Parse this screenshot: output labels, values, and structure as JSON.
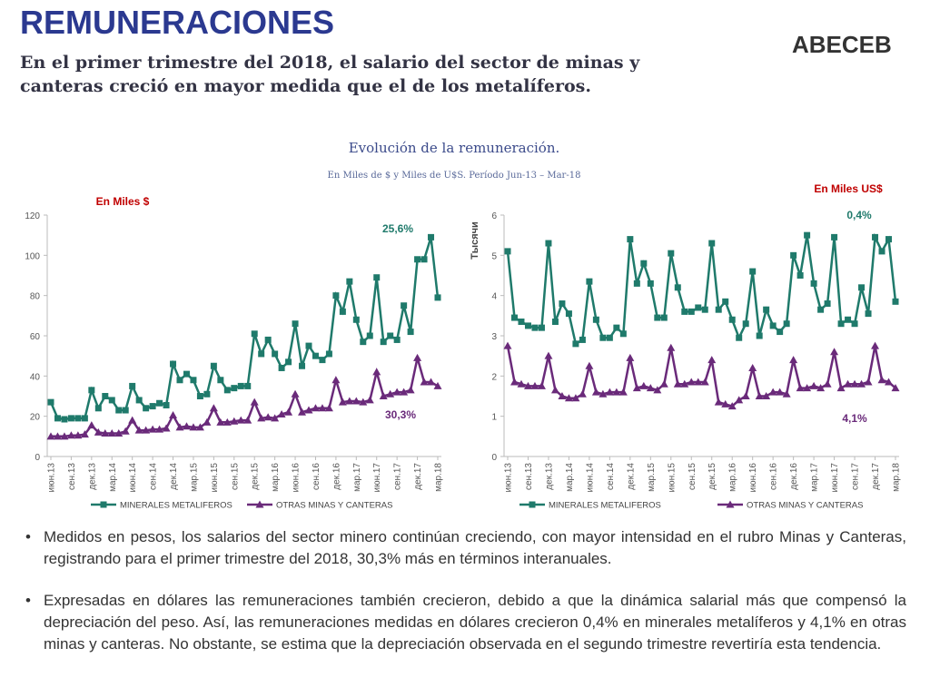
{
  "title": "REMUNERACIONES",
  "subtitle": "En el primer trimestre del 2018, el salario del sector de minas y canteras creció en mayor medida que el de los metalíferos.",
  "logo": "ABECEB",
  "chart_header": {
    "title": "Evolución de la remuneración.",
    "subtitle": "En Miles de $ y Miles de U$S. Período Jun-13 – Mar-18"
  },
  "bullets": [
    "Medidos en pesos, los salarios del sector minero continúan creciendo, con mayor intensidad en el rubro Minas y Canteras, registrando para el primer trimestre del 2018, 30,3%  más en términos interanuales.",
    "Expresadas en dólares las remuneraciones también crecieron, debido a que la dinámica salarial más que compensó la depreciación del peso. Así, las remuneraciones medidas en dólares crecieron 0,4% en minerales metalíferos y 4,1% en otras minas y canteras. No obstante, se estima que la depreciación observada en el segundo trimestre revertiría esta tendencia."
  ],
  "chart_data": [
    {
      "type": "line",
      "annotations": [
        "En Miles  $",
        "25,6%",
        "30,3%"
      ],
      "categories": [
        "июн.13",
        null,
        null,
        "сен.13",
        null,
        null,
        "дек.13",
        null,
        null,
        "мар.14",
        null,
        null,
        "июн.14",
        null,
        null,
        "сен.14",
        null,
        null,
        "дек.14",
        null,
        null,
        "мар.15",
        null,
        null,
        "июн.15",
        null,
        null,
        "сен.15",
        null,
        null,
        "дек.15",
        null,
        null,
        "мар.16",
        null,
        null,
        "июн.16",
        null,
        null,
        "сен.16",
        null,
        null,
        "дек.16",
        null,
        null,
        "мар.17",
        null,
        null,
        "июн.17",
        null,
        null,
        "сен.17",
        null,
        null,
        "дек.17",
        null,
        null,
        "мар.18"
      ],
      "ylim": [
        0,
        120
      ],
      "yticks": [
        0,
        20,
        40,
        60,
        80,
        100,
        120
      ],
      "legend": "bottom",
      "series": [
        {
          "name": "MINERALES METALIFEROS",
          "color": "#1f7a6b",
          "values": [
            27,
            19,
            18.5,
            19,
            19,
            19,
            33,
            24,
            30,
            28,
            23,
            23,
            35,
            28,
            24,
            25,
            26.5,
            25.5,
            46,
            38,
            41,
            38,
            30,
            31,
            45,
            38,
            33,
            34,
            35,
            35,
            61,
            51,
            58,
            51,
            44,
            47,
            66,
            45,
            55,
            50,
            48,
            51,
            80,
            72,
            87,
            68,
            57,
            60,
            89,
            57,
            60,
            58,
            75,
            62,
            98,
            98,
            109,
            79
          ]
        },
        {
          "name": "OTRAS MINAS Y CANTERAS",
          "color": "#6a2a7a",
          "values": [
            10,
            10,
            10,
            10.5,
            10.5,
            11,
            15.5,
            12,
            11.5,
            11.5,
            11.5,
            12.5,
            18,
            13,
            13,
            13.5,
            13.5,
            14,
            20.5,
            14.5,
            15,
            14.5,
            14.5,
            17,
            24,
            17,
            17,
            17.5,
            18,
            18,
            27,
            19,
            19.5,
            19,
            21,
            22,
            31,
            22,
            23,
            24,
            24,
            24,
            38,
            27,
            27.5,
            27.5,
            27,
            28,
            42,
            30,
            31,
            32,
            32,
            33,
            49,
            37,
            37,
            35
          ]
        }
      ]
    },
    {
      "type": "line",
      "y_label": "Тысячи",
      "annotations": [
        "En Miles US$",
        "0,4%",
        "4,1%"
      ],
      "categories": [
        "июн.13",
        null,
        null,
        "сен.13",
        null,
        null,
        "дек.13",
        null,
        null,
        "мар.14",
        null,
        null,
        "июн.14",
        null,
        null,
        "сен.14",
        null,
        null,
        "дек.14",
        null,
        null,
        "мар.15",
        null,
        null,
        "июн.15",
        null,
        null,
        "сен.15",
        null,
        null,
        "дек.15",
        null,
        null,
        "мар.16",
        null,
        null,
        "июн.16",
        null,
        null,
        "сен.16",
        null,
        null,
        "дек.16",
        null,
        null,
        "мар.17",
        null,
        null,
        "июн.17",
        null,
        null,
        "сен.17",
        null,
        null,
        "дек.17",
        null,
        null,
        "мар.18"
      ],
      "ylim": [
        0,
        6
      ],
      "yticks": [
        0,
        1,
        2,
        3,
        4,
        5,
        6
      ],
      "legend": "bottom",
      "series": [
        {
          "name": "MINERALES METALIFEROS",
          "color": "#1f7a6b",
          "values": [
            5.1,
            3.45,
            3.35,
            3.25,
            3.2,
            3.2,
            5.3,
            3.35,
            3.8,
            3.55,
            2.8,
            2.9,
            4.35,
            3.4,
            2.95,
            2.95,
            3.2,
            3.05,
            5.4,
            4.3,
            4.8,
            4.3,
            3.45,
            3.45,
            5.05,
            4.2,
            3.6,
            3.6,
            3.7,
            3.65,
            5.3,
            3.65,
            3.85,
            3.4,
            2.95,
            3.3,
            4.6,
            3.0,
            3.65,
            3.25,
            3.1,
            3.3,
            5.0,
            4.5,
            5.5,
            4.3,
            3.65,
            3.8,
            5.45,
            3.3,
            3.4,
            3.3,
            4.2,
            3.55,
            5.45,
            5.1,
            5.4,
            3.85
          ]
        },
        {
          "name": "OTRAS MINAS Y CANTERAS",
          "color": "#6a2a7a",
          "values": [
            2.75,
            1.85,
            1.8,
            1.75,
            1.75,
            1.75,
            2.5,
            1.65,
            1.5,
            1.45,
            1.45,
            1.55,
            2.25,
            1.6,
            1.55,
            1.6,
            1.6,
            1.6,
            2.45,
            1.7,
            1.75,
            1.7,
            1.65,
            1.8,
            2.7,
            1.8,
            1.8,
            1.85,
            1.85,
            1.85,
            2.4,
            1.35,
            1.3,
            1.25,
            1.4,
            1.5,
            2.2,
            1.5,
            1.5,
            1.6,
            1.6,
            1.55,
            2.4,
            1.7,
            1.7,
            1.75,
            1.7,
            1.8,
            2.6,
            1.7,
            1.8,
            1.8,
            1.8,
            1.85,
            2.75,
            1.9,
            1.85,
            1.7
          ]
        }
      ]
    }
  ]
}
